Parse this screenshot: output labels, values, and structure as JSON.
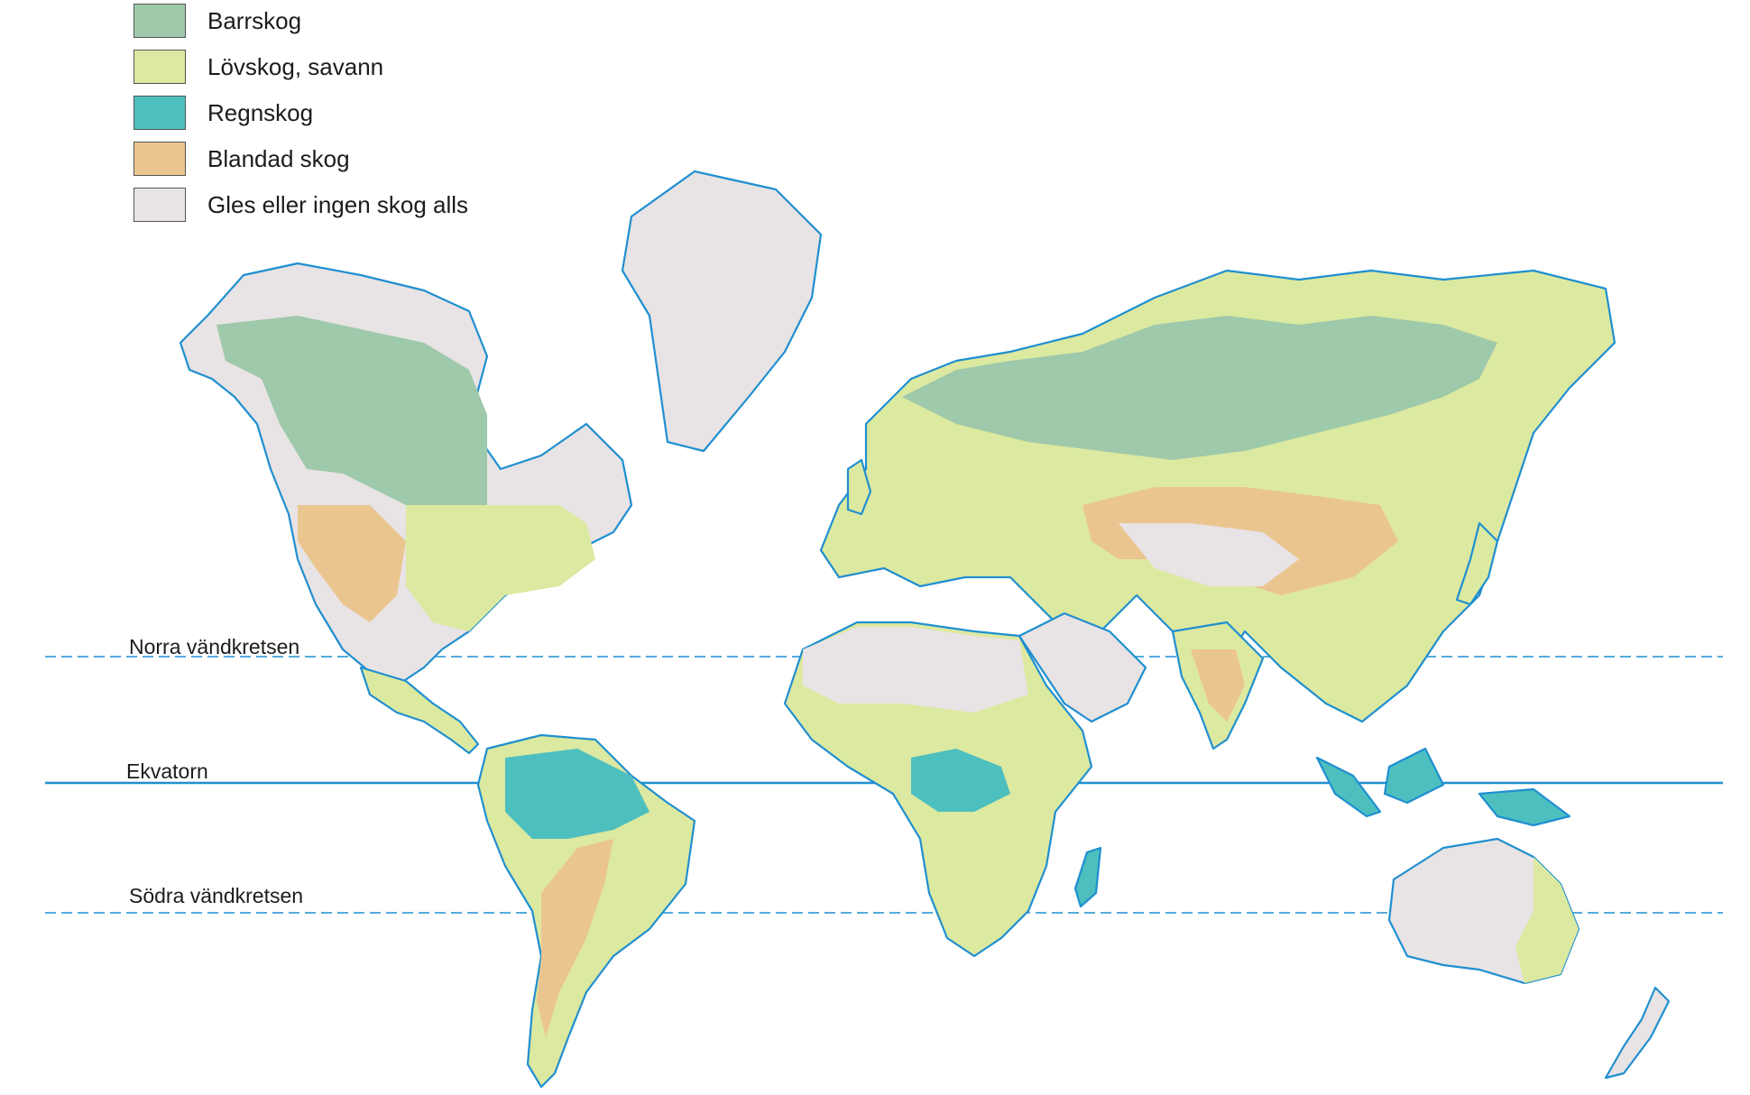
{
  "legend": [
    {
      "label": "Barrskog",
      "color": "#9ec9aa"
    },
    {
      "label": "Lövskog, savann",
      "color": "#dce9a0"
    },
    {
      "label": "Regnskog",
      "color": "#4dbfbf"
    },
    {
      "label": "Blandad skog",
      "color": "#ebc590"
    },
    {
      "label": "Gles eller ingen skog alls",
      "color": "#e8e3e4"
    }
  ],
  "lines": {
    "tropic_north": "Norra vändkretsen",
    "equator": "Ekvatorn",
    "tropic_south": "Södra vändkretsen"
  },
  "colors": {
    "coast": "#1f8fd0",
    "barrskog": "#9ec9aa",
    "lovskog": "#dce9a0",
    "regnskog": "#4dbfbf",
    "blandad": "#ebc590",
    "gles": "#e8e3e4"
  }
}
